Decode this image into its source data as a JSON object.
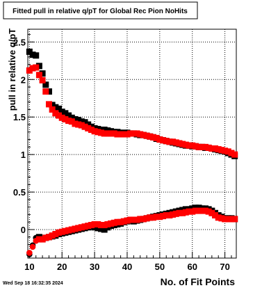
{
  "chart_data": {
    "type": "scatter",
    "title": "Fitted pull in relative q/pT for Global Rec Pion NoHits",
    "xlabel": "No. of Fit Points",
    "ylabel": "pull in relative q/pT",
    "xlim": [
      9.5,
      73.5
    ],
    "ylim": [
      -0.38,
      2.67
    ],
    "x_ticks": [
      10,
      20,
      30,
      40,
      50,
      60,
      70
    ],
    "x_tick_labels": [
      "10",
      "20",
      "30",
      "40",
      "50",
      "60",
      "70"
    ],
    "y_ticks": [
      0,
      0.5,
      1,
      1.5,
      2,
      2.5
    ],
    "y_tick_labels": [
      "0",
      "0.5",
      "1",
      "1.5",
      "2",
      "2.5"
    ],
    "grid": true,
    "series": [
      {
        "color": "#000000",
        "marker": "square",
        "sigma": {
          "x": [
            10,
            11,
            12,
            13,
            14,
            15,
            16,
            17,
            18,
            19,
            20,
            21,
            22,
            23,
            24,
            25,
            26,
            27,
            28,
            29,
            30,
            31,
            32,
            33,
            34,
            35,
            36,
            37,
            38,
            39,
            40,
            41,
            42,
            43,
            44,
            45,
            46,
            47,
            48,
            49,
            50,
            51,
            52,
            53,
            54,
            55,
            56,
            57,
            58,
            59,
            60,
            61,
            62,
            63,
            64,
            65,
            66,
            67,
            68,
            69,
            70,
            71,
            72,
            73
          ],
          "y": [
            2.37,
            2.33,
            2.32,
            2.18,
            2.08,
            1.93,
            1.84,
            1.66,
            1.63,
            1.61,
            1.57,
            1.55,
            1.52,
            1.49,
            1.47,
            1.46,
            1.44,
            1.43,
            1.4,
            1.37,
            1.35,
            1.34,
            1.33,
            1.33,
            1.32,
            1.31,
            1.3,
            1.3,
            1.29,
            1.29,
            1.29,
            1.28,
            1.28,
            1.27,
            1.26,
            1.26,
            1.25,
            1.24,
            1.23,
            1.21,
            1.2,
            1.19,
            1.18,
            1.17,
            1.16,
            1.15,
            1.14,
            1.13,
            1.12,
            1.12,
            1.11,
            1.11,
            1.1,
            1.1,
            1.09,
            1.09,
            1.08,
            1.07,
            1.06,
            1.05,
            1.04,
            1.02,
            1.0,
            0.98
          ]
        },
        "mean": {
          "x": [
            10,
            11,
            12,
            13,
            14,
            15,
            16,
            17,
            18,
            19,
            20,
            21,
            22,
            23,
            24,
            25,
            26,
            27,
            28,
            29,
            30,
            31,
            32,
            33,
            34,
            35,
            36,
            37,
            38,
            39,
            40,
            41,
            42,
            43,
            44,
            45,
            46,
            47,
            48,
            49,
            50,
            51,
            52,
            53,
            54,
            55,
            56,
            57,
            58,
            59,
            60,
            61,
            62,
            63,
            64,
            65,
            66,
            67,
            68,
            69,
            70,
            71,
            72,
            73
          ],
          "y": [
            -0.33,
            -0.21,
            -0.11,
            -0.1,
            -0.13,
            -0.11,
            -0.1,
            -0.09,
            -0.08,
            -0.06,
            -0.05,
            -0.04,
            -0.03,
            -0.02,
            -0.01,
            0.0,
            0.01,
            0.02,
            0.03,
            0.04,
            0.03,
            0.02,
            0.01,
            0.0,
            0.03,
            0.05,
            0.06,
            0.07,
            0.08,
            0.1,
            0.11,
            0.12,
            0.11,
            0.12,
            0.13,
            0.14,
            0.15,
            0.16,
            0.17,
            0.18,
            0.19,
            0.2,
            0.21,
            0.22,
            0.23,
            0.24,
            0.25,
            0.26,
            0.27,
            0.27,
            0.28,
            0.29,
            0.29,
            0.28,
            0.28,
            0.27,
            0.25,
            0.22,
            0.19,
            0.17,
            0.15,
            0.15,
            0.15,
            0.14
          ]
        }
      },
      {
        "color": "#ff0000",
        "marker": "square",
        "sigma": {
          "x": [
            10,
            11,
            12,
            13,
            14,
            15,
            16,
            17,
            18,
            19,
            20,
            21,
            22,
            23,
            24,
            25,
            26,
            27,
            28,
            29,
            30,
            31,
            32,
            33,
            34,
            35,
            36,
            37,
            38,
            39,
            40,
            41,
            42,
            43,
            44,
            45,
            46,
            47,
            48,
            49,
            50,
            51,
            52,
            53,
            54,
            55,
            56,
            57,
            58,
            59,
            60,
            61,
            62,
            63,
            64,
            65,
            66,
            67,
            68,
            69,
            70,
            71,
            72,
            73
          ],
          "y": [
            2.12,
            2.15,
            2.16,
            2.06,
            1.99,
            1.84,
            1.67,
            1.6,
            1.55,
            1.52,
            1.49,
            1.47,
            1.45,
            1.44,
            1.41,
            1.4,
            1.39,
            1.37,
            1.35,
            1.33,
            1.31,
            1.3,
            1.29,
            1.28,
            1.28,
            1.28,
            1.28,
            1.27,
            1.27,
            1.27,
            1.27,
            1.28,
            1.28,
            1.28,
            1.27,
            1.26,
            1.25,
            1.24,
            1.23,
            1.22,
            1.2,
            1.19,
            1.18,
            1.17,
            1.17,
            1.16,
            1.15,
            1.14,
            1.13,
            1.12,
            1.12,
            1.11,
            1.1,
            1.1,
            1.1,
            1.09,
            1.08,
            1.08,
            1.07,
            1.06,
            1.05,
            1.04,
            1.02,
            1.0
          ]
        },
        "mean": {
          "x": [
            10,
            11,
            12,
            13,
            14,
            15,
            16,
            17,
            18,
            19,
            20,
            21,
            22,
            23,
            24,
            25,
            26,
            27,
            28,
            29,
            30,
            31,
            32,
            33,
            34,
            35,
            36,
            37,
            38,
            39,
            40,
            41,
            42,
            43,
            44,
            45,
            46,
            47,
            48,
            49,
            50,
            51,
            52,
            53,
            54,
            55,
            56,
            57,
            58,
            59,
            60,
            61,
            62,
            63,
            64,
            65,
            66,
            67,
            68,
            69,
            70,
            71,
            72,
            73
          ],
          "y": [
            -0.31,
            -0.23,
            -0.15,
            -0.13,
            -0.13,
            -0.11,
            -0.1,
            -0.08,
            -0.06,
            -0.04,
            -0.03,
            -0.02,
            -0.01,
            0.0,
            0.01,
            0.02,
            0.03,
            0.04,
            0.05,
            0.06,
            0.07,
            0.07,
            0.06,
            0.06,
            0.07,
            0.08,
            0.09,
            0.1,
            0.1,
            0.11,
            0.12,
            0.13,
            0.13,
            0.13,
            0.14,
            0.14,
            0.15,
            0.16,
            0.16,
            0.17,
            0.17,
            0.18,
            0.19,
            0.19,
            0.2,
            0.21,
            0.22,
            0.22,
            0.23,
            0.24,
            0.24,
            0.25,
            0.25,
            0.25,
            0.25,
            0.24,
            0.22,
            0.19,
            0.16,
            0.15,
            0.14,
            0.14,
            0.14,
            0.14
          ]
        }
      }
    ]
  },
  "footer": {
    "timestamp": "Wed Sep 18 16:32:35 2024"
  }
}
